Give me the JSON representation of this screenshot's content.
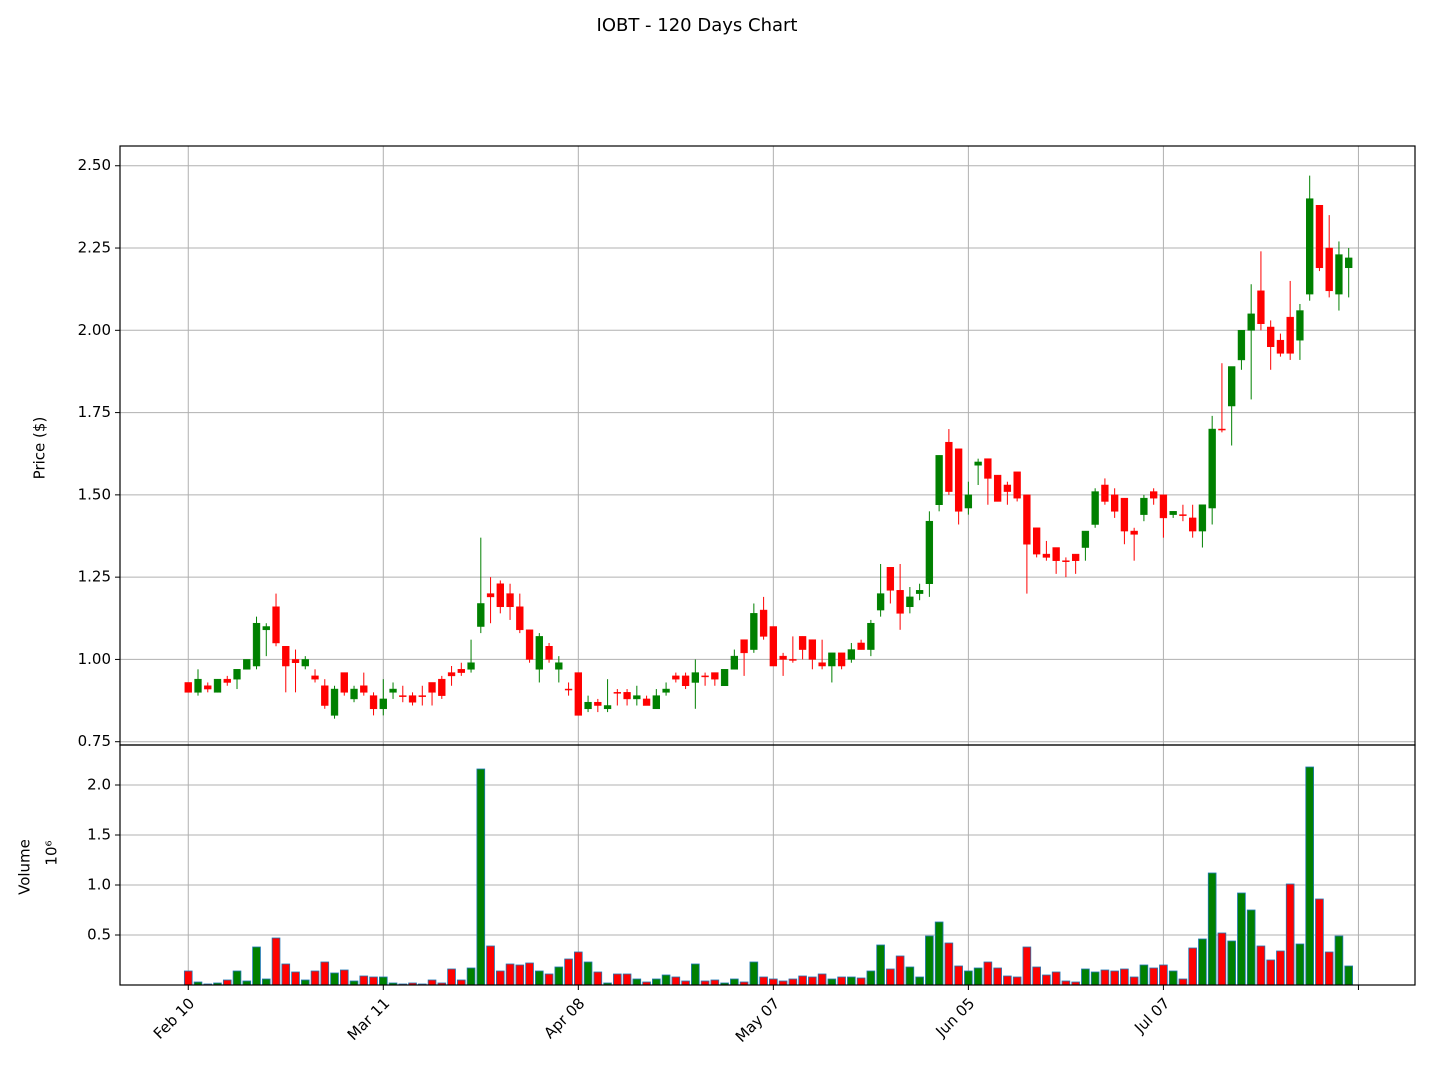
{
  "chart_data": [
    {
      "type": "candlestick",
      "title": "IOBT - 120 Days Chart",
      "ylabel": "Price ($)",
      "up_color": "green",
      "down_color": "red",
      "grid": true,
      "xlim": [
        -7,
        125.8
      ],
      "ylim": [
        0.74,
        2.56
      ],
      "yticks": [
        0.75,
        {
          "value": 1,
          "label": "1.00"
        },
        1.25,
        {
          "value": 1.5,
          "label": "1.50"
        },
        1.75,
        {
          "value": 2,
          "label": "2.00"
        },
        2.25,
        {
          "value": 2.5,
          "label": "2.50"
        }
      ],
      "open": [
        0.93,
        0.9,
        0.92,
        0.9,
        0.94,
        0.94,
        0.97,
        0.98,
        1.09,
        1.16,
        1.04,
        1.0,
        0.98,
        0.95,
        0.92,
        0.83,
        0.96,
        0.88,
        0.92,
        0.89,
        0.85,
        0.9,
        0.89,
        0.89,
        0.89,
        0.93,
        0.94,
        0.96,
        0.97,
        0.97,
        1.1,
        1.2,
        1.23,
        1.2,
        1.16,
        1.09,
        0.97,
        1.04,
        0.97,
        0.91,
        0.96,
        0.85,
        0.87,
        0.85,
        0.9,
        0.9,
        0.88,
        0.88,
        0.85,
        0.9,
        0.95,
        0.95,
        0.93,
        0.95,
        0.96,
        0.92,
        0.97,
        1.06,
        1.03,
        1.15,
        1.1,
        1.01,
        1.0,
        1.07,
        1.06,
        0.99,
        0.98,
        1.02,
        1.0,
        1.05,
        1.03,
        1.15,
        1.28,
        1.21,
        1.16,
        1.2,
        1.23,
        1.47,
        1.66,
        1.64,
        1.46,
        1.59,
        1.61,
        1.56,
        1.53,
        1.57,
        1.5,
        1.4,
        1.32,
        1.34,
        1.3,
        1.32,
        1.34,
        1.41,
        1.53,
        1.5,
        1.49,
        1.39,
        1.44,
        1.51,
        1.5,
        1.44,
        1.44,
        1.43,
        1.39,
        1.46,
        1.7,
        1.77,
        1.91,
        2.0,
        2.12,
        2.01,
        1.97,
        2.04,
        1.97,
        2.11,
        2.38,
        2.25,
        2.11,
        2.19
      ],
      "high": [
        0.93,
        0.97,
        0.93,
        0.94,
        0.95,
        0.97,
        1.0,
        1.13,
        1.11,
        1.2,
        1.04,
        1.03,
        1.01,
        0.97,
        0.94,
        0.92,
        0.96,
        0.92,
        0.96,
        0.9,
        0.94,
        0.93,
        0.92,
        0.9,
        0.92,
        0.93,
        0.95,
        0.98,
        0.99,
        1.06,
        1.37,
        1.25,
        1.24,
        1.23,
        1.2,
        1.09,
        1.08,
        1.05,
        1.01,
        0.93,
        0.96,
        0.89,
        0.88,
        0.94,
        0.91,
        0.91,
        0.92,
        0.89,
        0.91,
        0.93,
        0.96,
        0.96,
        1.0,
        0.96,
        0.96,
        0.97,
        1.03,
        1.06,
        1.17,
        1.19,
        1.1,
        1.02,
        1.07,
        1.07,
        1.06,
        1.06,
        1.02,
        1.02,
        1.05,
        1.06,
        1.12,
        1.29,
        1.28,
        1.29,
        1.22,
        1.23,
        1.45,
        1.62,
        1.7,
        1.64,
        1.54,
        1.61,
        1.61,
        1.56,
        1.54,
        1.57,
        1.5,
        1.4,
        1.36,
        1.34,
        1.31,
        1.32,
        1.39,
        1.52,
        1.55,
        1.52,
        1.49,
        1.4,
        1.5,
        1.52,
        1.5,
        1.45,
        1.47,
        1.47,
        1.47,
        1.74,
        1.9,
        1.89,
        2.0,
        2.14,
        2.24,
        2.03,
        1.99,
        2.15,
        2.08,
        2.47,
        2.38,
        2.35,
        2.27,
        2.25
      ],
      "low": [
        0.9,
        0.89,
        0.9,
        0.9,
        0.92,
        0.91,
        0.97,
        0.97,
        1.01,
        1.04,
        0.9,
        0.9,
        0.97,
        0.93,
        0.85,
        0.82,
        0.89,
        0.87,
        0.89,
        0.83,
        0.83,
        0.88,
        0.87,
        0.86,
        0.86,
        0.86,
        0.88,
        0.92,
        0.95,
        0.96,
        1.08,
        1.11,
        1.14,
        1.12,
        1.08,
        0.99,
        0.93,
        0.99,
        0.93,
        0.89,
        0.83,
        0.84,
        0.84,
        0.84,
        0.86,
        0.86,
        0.86,
        0.86,
        0.85,
        0.89,
        0.93,
        0.91,
        0.85,
        0.92,
        0.92,
        0.92,
        0.97,
        0.95,
        1.02,
        1.06,
        0.98,
        0.95,
        0.99,
        1.0,
        0.97,
        0.97,
        0.93,
        0.97,
        0.99,
        1.03,
        1.01,
        1.13,
        1.17,
        1.09,
        1.14,
        1.18,
        1.19,
        1.45,
        1.5,
        1.41,
        1.44,
        1.53,
        1.47,
        1.48,
        1.47,
        1.48,
        1.2,
        1.31,
        1.3,
        1.26,
        1.25,
        1.26,
        1.3,
        1.4,
        1.47,
        1.43,
        1.35,
        1.3,
        1.42,
        1.47,
        1.37,
        1.43,
        1.42,
        1.37,
        1.34,
        1.41,
        1.69,
        1.65,
        1.88,
        1.79,
        2.0,
        1.88,
        1.92,
        1.91,
        1.91,
        2.09,
        2.18,
        2.1,
        2.06,
        2.1
      ],
      "close": [
        0.9,
        0.94,
        0.91,
        0.94,
        0.93,
        0.97,
        1.0,
        1.11,
        1.1,
        1.05,
        0.98,
        0.99,
        1.0,
        0.94,
        0.86,
        0.91,
        0.9,
        0.91,
        0.9,
        0.85,
        0.88,
        0.91,
        0.89,
        0.87,
        0.89,
        0.9,
        0.89,
        0.95,
        0.96,
        0.99,
        1.17,
        1.19,
        1.16,
        1.16,
        1.09,
        1.0,
        1.07,
        1.0,
        0.99,
        0.91,
        0.83,
        0.87,
        0.86,
        0.86,
        0.9,
        0.88,
        0.89,
        0.86,
        0.89,
        0.91,
        0.94,
        0.92,
        0.96,
        0.95,
        0.94,
        0.97,
        1.01,
        1.02,
        1.14,
        1.07,
        0.98,
        1.0,
        1.0,
        1.03,
        1.0,
        0.98,
        1.02,
        0.98,
        1.03,
        1.03,
        1.11,
        1.2,
        1.21,
        1.14,
        1.19,
        1.21,
        1.42,
        1.62,
        1.51,
        1.45,
        1.5,
        1.6,
        1.55,
        1.48,
        1.51,
        1.49,
        1.35,
        1.32,
        1.31,
        1.3,
        1.3,
        1.3,
        1.39,
        1.51,
        1.48,
        1.45,
        1.39,
        1.38,
        1.49,
        1.49,
        1.43,
        1.45,
        1.44,
        1.39,
        1.47,
        1.7,
        1.7,
        1.89,
        2.0,
        2.05,
        2.02,
        1.95,
        1.93,
        1.93,
        2.06,
        2.4,
        2.19,
        2.12,
        2.23,
        2.22
      ]
    },
    {
      "type": "bar",
      "ylabel": "Volume",
      "offset_label": "10⁶",
      "up_color": "green",
      "down_color": "red",
      "edge_color": "#1f77b4",
      "grid": true,
      "xlim": [
        -7,
        125.8
      ],
      "ylim": [
        0,
        2.4
      ],
      "yticks": [
        0.5,
        {
          "value": 1,
          "label": "1.0"
        },
        1.5,
        {
          "value": 2,
          "label": "2.0"
        }
      ],
      "xticks": [
        {
          "value": 0,
          "label": "Feb 10"
        },
        {
          "value": 20,
          "label": "Mar 11"
        },
        {
          "value": 40,
          "label": "Apr 08"
        },
        {
          "value": 60,
          "label": "May 07"
        },
        {
          "value": 80,
          "label": "Jun 05"
        },
        {
          "value": 100,
          "label": "Jul 07"
        },
        {
          "value": 120,
          "label": null
        }
      ],
      "values": [
        0.14,
        0.03,
        0.01,
        0.02,
        0.05,
        0.14,
        0.04,
        0.38,
        0.06,
        0.47,
        0.21,
        0.13,
        0.05,
        0.14,
        0.23,
        0.12,
        0.15,
        0.04,
        0.09,
        0.08,
        0.08,
        0.02,
        0.01,
        0.02,
        0.01,
        0.05,
        0.02,
        0.16,
        0.05,
        0.17,
        2.16,
        0.39,
        0.14,
        0.21,
        0.2,
        0.22,
        0.14,
        0.11,
        0.18,
        0.26,
        0.33,
        0.23,
        0.13,
        0.02,
        0.11,
        0.11,
        0.06,
        0.03,
        0.06,
        0.1,
        0.08,
        0.04,
        0.21,
        0.04,
        0.05,
        0.02,
        0.06,
        0.03,
        0.23,
        0.08,
        0.06,
        0.04,
        0.06,
        0.09,
        0.08,
        0.11,
        0.06,
        0.08,
        0.08,
        0.07,
        0.14,
        0.4,
        0.16,
        0.29,
        0.18,
        0.08,
        0.49,
        0.63,
        0.42,
        0.19,
        0.14,
        0.17,
        0.23,
        0.17,
        0.09,
        0.08,
        0.38,
        0.18,
        0.1,
        0.13,
        0.04,
        0.03,
        0.16,
        0.13,
        0.15,
        0.14,
        0.16,
        0.08,
        0.2,
        0.17,
        0.2,
        0.14,
        0.06,
        0.37,
        0.46,
        1.12,
        0.52,
        0.44,
        0.92,
        0.75,
        0.39,
        0.25,
        0.34,
        1.01,
        0.41,
        2.18,
        0.86,
        0.33,
        0.49,
        0.19
      ]
    }
  ]
}
